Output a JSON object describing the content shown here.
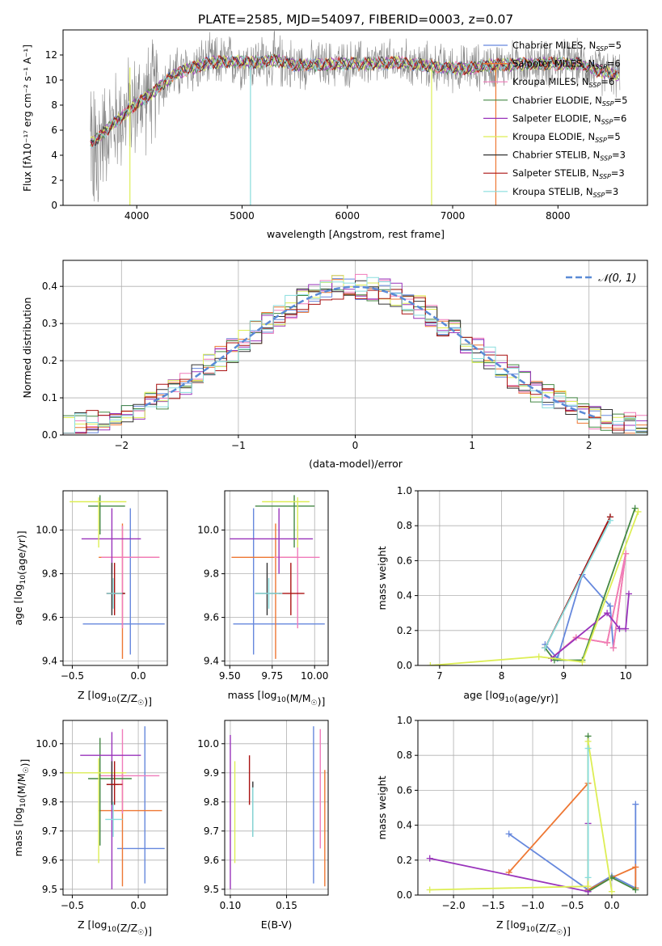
{
  "title": "PLATE=2585, MJD=54097, FIBERID=0003, z=0.07",
  "colors": [
    "#6688dd",
    "#ee7733",
    "#f07bbb",
    "#448844",
    "#9933bb",
    "#ddee55",
    "#333333",
    "#aa1111",
    "#88dddd",
    "#888888"
  ],
  "chart_data": [
    {
      "id": "spectrum",
      "type": "line",
      "xlabel": "wavelength [Angstrom, rest frame]",
      "ylabel": "Flux [fλ10⁻¹⁷ erg cm⁻² s⁻¹ A⁻¹]",
      "xlim": [
        3300,
        8850
      ],
      "ylim": [
        0,
        14
      ],
      "xticks": [
        "4000",
        "5000",
        "6000",
        "7000",
        "8000"
      ],
      "yticks": [
        "0",
        "2",
        "4",
        "6",
        "8",
        "10",
        "12"
      ],
      "legend_position": "right",
      "legend": [
        {
          "name": "Chabrier MILES, N",
          "sub": "SSP",
          "n": "=5",
          "color": "#6688dd"
        },
        {
          "name": "Salpeter MILES, N",
          "sub": "SSP",
          "n": "=6",
          "color": "#ee7733"
        },
        {
          "name": "Kroupa MILES, N",
          "sub": "SSP",
          "n": "=6",
          "color": "#f07bbb"
        },
        {
          "name": "Chabrier ELODIE, N",
          "sub": "SSP",
          "n": "=5",
          "color": "#448844"
        },
        {
          "name": "Salpeter ELODIE, N",
          "sub": "SSP",
          "n": "=6",
          "color": "#9933bb"
        },
        {
          "name": "Kroupa ELODIE, N",
          "sub": "SSP",
          "n": "=5",
          "color": "#ddee55"
        },
        {
          "name": "Chabrier STELIB, N",
          "sub": "SSP",
          "n": "=3",
          "color": "#333333"
        },
        {
          "name": "Salpeter STELIB, N",
          "sub": "SSP",
          "n": "=3",
          "color": "#aa1111"
        },
        {
          "name": "Kroupa STELIB, N",
          "sub": "SSP",
          "n": "=3",
          "color": "#88dddd"
        }
      ],
      "model_continuum": [
        [
          3560,
          5.0
        ],
        [
          3650,
          5.5
        ],
        [
          3750,
          6.3
        ],
        [
          3850,
          7.0
        ],
        [
          3950,
          7.8
        ],
        [
          4050,
          8.4
        ],
        [
          4150,
          9.0
        ],
        [
          4250,
          9.7
        ],
        [
          4350,
          10.4
        ],
        [
          4500,
          10.9
        ],
        [
          4700,
          11.4
        ],
        [
          4900,
          11.5
        ],
        [
          5100,
          11.4
        ],
        [
          5300,
          11.6
        ],
        [
          5500,
          11.2
        ],
        [
          5700,
          11.2
        ],
        [
          5900,
          11.3
        ],
        [
          6100,
          11.3
        ],
        [
          6300,
          11.3
        ],
        [
          6500,
          11.4
        ],
        [
          6700,
          11.2
        ],
        [
          6900,
          11.0
        ],
        [
          7100,
          10.9
        ],
        [
          7300,
          11.1
        ],
        [
          7450,
          11.2
        ],
        [
          7700,
          11.3
        ],
        [
          8000,
          11.3
        ],
        [
          8200,
          11.3
        ],
        [
          8400,
          10.7
        ],
        [
          8580,
          10.4
        ]
      ]
    },
    {
      "id": "residuals",
      "type": "histogram",
      "xlabel": "(data-model)/error",
      "ylabel": "Normed distribution",
      "xlim": [
        -2.5,
        2.5
      ],
      "ylim": [
        0,
        0.47
      ],
      "xticks": [
        "−2",
        "−1",
        "0",
        "1",
        "2"
      ],
      "yticks": [
        "0.0",
        "0.1",
        "0.2",
        "0.3",
        "0.4"
      ],
      "grid": true,
      "legend_label": "𝒩(0, 1)",
      "legend_position": "top-right",
      "bin_width": 0.1,
      "bins_start": -2.5,
      "gaussian": {
        "mean": 0,
        "sigma": 1,
        "range": [
          -1.8,
          2.1
        ]
      }
    },
    {
      "id": "age-vs-Z",
      "type": "errorbar",
      "xlabel": "Z [log10(Z/Z☉)]",
      "ylabel": "age  [log10(age/yr)]",
      "xlim": [
        -0.57,
        0.22
      ],
      "ylim": [
        9.38,
        10.18
      ],
      "xticks": [
        "−0.5",
        "0.0"
      ],
      "xtick_values": [
        -0.5,
        0.0
      ],
      "yticks": [
        "9.4",
        "9.6",
        "9.8",
        "10.0"
      ],
      "ytick_values": [
        9.4,
        9.6,
        9.8,
        10.0
      ],
      "grid": true,
      "points": [
        {
          "x": -0.06,
          "xlo": -0.42,
          "xhi": 0.2,
          "y": 9.57,
          "ylo": 9.43,
          "yhi": 10.1,
          "color": "#6688dd"
        },
        {
          "x": -0.12,
          "xlo": -0.3,
          "xhi": 0.16,
          "y": 9.875,
          "ylo": 9.41,
          "yhi": 10.03,
          "color": "#ee7733"
        },
        {
          "x": -0.12,
          "xlo": -0.28,
          "xhi": 0.16,
          "y": 9.875,
          "ylo": 9.55,
          "yhi": 10.02,
          "color": "#f07bbb"
        },
        {
          "x": -0.29,
          "xlo": -0.38,
          "xhi": -0.1,
          "y": 10.11,
          "ylo": 9.98,
          "yhi": 10.16,
          "color": "#448844"
        },
        {
          "x": -0.2,
          "xlo": -0.43,
          "xhi": 0.02,
          "y": 9.96,
          "ylo": 9.8,
          "yhi": 10.1,
          "color": "#9933bb"
        },
        {
          "x": -0.3,
          "xlo": -0.52,
          "xhi": -0.09,
          "y": 10.13,
          "ylo": 9.92,
          "yhi": 10.15,
          "color": "#ddee55"
        },
        {
          "x": -0.2,
          "xlo": -0.24,
          "xhi": -0.1,
          "y": 9.71,
          "ylo": 9.61,
          "yhi": 9.85,
          "color": "#333333"
        },
        {
          "x": -0.18,
          "xlo": -0.24,
          "xhi": -0.1,
          "y": 9.71,
          "ylo": 9.61,
          "yhi": 9.85,
          "color": "#aa1111"
        },
        {
          "x": -0.19,
          "xlo": -0.24,
          "xhi": -0.12,
          "y": 9.71,
          "ylo": 9.64,
          "yhi": 9.78,
          "color": "#88dddd"
        }
      ]
    },
    {
      "id": "age-vs-mass",
      "type": "errorbar",
      "xlabel": "mass [log10(M/M☉)]",
      "ylabel": "",
      "xlim": [
        9.47,
        10.08
      ],
      "ylim": [
        9.38,
        10.18
      ],
      "xticks": [
        "9.50",
        "9.75",
        "10.00"
      ],
      "xtick_values": [
        9.5,
        9.75,
        10.0
      ],
      "yticks": [
        "9.4",
        "9.6",
        "9.8",
        "10.0"
      ],
      "ytick_values": [
        9.4,
        9.6,
        9.8,
        10.0
      ],
      "grid": true,
      "points": [
        {
          "x": 9.64,
          "xlo": 9.52,
          "xhi": 10.06,
          "y": 9.57,
          "ylo": 9.43,
          "yhi": 10.1,
          "color": "#6688dd"
        },
        {
          "x": 9.77,
          "xlo": 9.51,
          "xhi": 9.9,
          "y": 9.875,
          "ylo": 9.41,
          "yhi": 10.03,
          "color": "#ee7733"
        },
        {
          "x": 9.9,
          "xlo": 9.76,
          "xhi": 10.03,
          "y": 9.875,
          "ylo": 9.55,
          "yhi": 10.02,
          "color": "#f07bbb"
        },
        {
          "x": 9.88,
          "xlo": 9.65,
          "xhi": 10.0,
          "y": 10.11,
          "ylo": 9.92,
          "yhi": 10.16,
          "color": "#448844"
        },
        {
          "x": 9.79,
          "xlo": 9.5,
          "xhi": 9.99,
          "y": 9.96,
          "ylo": 9.8,
          "yhi": 10.1,
          "color": "#9933bb"
        },
        {
          "x": 9.9,
          "xlo": 9.69,
          "xhi": 9.97,
          "y": 10.13,
          "ylo": 9.92,
          "yhi": 10.15,
          "color": "#ddee55"
        },
        {
          "x": 9.72,
          "xlo": 9.65,
          "xhi": 9.8,
          "y": 9.71,
          "ylo": 9.61,
          "yhi": 9.85,
          "color": "#333333"
        },
        {
          "x": 9.86,
          "xlo": 9.79,
          "xhi": 9.94,
          "y": 9.71,
          "ylo": 9.61,
          "yhi": 9.85,
          "color": "#aa1111"
        },
        {
          "x": 9.73,
          "xlo": 9.65,
          "xhi": 9.81,
          "y": 9.71,
          "ylo": 9.64,
          "yhi": 9.78,
          "color": "#88dddd"
        }
      ]
    },
    {
      "id": "weight-vs-age",
      "type": "line",
      "xlabel": "age  [log10(age/yr)]",
      "ylabel": "mass weight",
      "xlim": [
        6.65,
        10.35
      ],
      "ylim": [
        0,
        1
      ],
      "xticks": [
        "7",
        "8",
        "9",
        "10"
      ],
      "xtick_values": [
        7,
        8,
        9,
        10
      ],
      "yticks": [
        "0.0",
        "0.2",
        "0.4",
        "0.6",
        "0.8",
        "1.0"
      ],
      "ytick_values": [
        0,
        0.2,
        0.4,
        0.6,
        0.8,
        1.0
      ],
      "grid": true,
      "series": [
        {
          "color": "#6688dd",
          "x": [
            8.7,
            8.9,
            9.3,
            9.75,
            9.8
          ],
          "y": [
            0.12,
            0.04,
            0.52,
            0.34,
            0.1
          ]
        },
        {
          "color": "#ee7733",
          "x": [
            8.8,
            9.2,
            9.7,
            10.0,
            9.8
          ],
          "y": [
            0.04,
            0.16,
            0.13,
            0.64,
            0.1
          ]
        },
        {
          "color": "#f07bbb",
          "x": [
            8.8,
            9.2,
            9.7,
            10.0,
            9.8
          ],
          "y": [
            0.04,
            0.16,
            0.13,
            0.64,
            0.1
          ]
        },
        {
          "color": "#448844",
          "x": [
            8.7,
            8.85,
            9.3,
            10.15
          ],
          "y": [
            0.1,
            0.03,
            0.03,
            0.9
          ]
        },
        {
          "color": "#9933bb",
          "x": [
            8.8,
            9.7,
            9.9,
            10.0,
            10.05
          ],
          "y": [
            0.04,
            0.3,
            0.21,
            0.21,
            0.41
          ]
        },
        {
          "color": "#ddee55",
          "x": [
            6.85,
            8.6,
            9.3,
            10.2
          ],
          "y": [
            0.0,
            0.05,
            0.02,
            0.88
          ]
        },
        {
          "color": "#333333",
          "x": [
            8.7,
            9.75
          ],
          "y": [
            0.1,
            0.85
          ]
        },
        {
          "color": "#aa1111",
          "x": [
            8.7,
            9.75
          ],
          "y": [
            0.1,
            0.85
          ]
        },
        {
          "color": "#88dddd",
          "x": [
            8.7,
            9.75
          ],
          "y": [
            0.1,
            0.83
          ]
        }
      ]
    },
    {
      "id": "mass-vs-Z",
      "type": "errorbar",
      "xlabel": "Z [log10(Z/Z☉)]",
      "ylabel": "mass [log10(M/M☉)]",
      "xlim": [
        -0.57,
        0.22
      ],
      "ylim": [
        9.48,
        10.08
      ],
      "xticks": [
        "−0.5",
        "0.0"
      ],
      "xtick_values": [
        -0.5,
        0.0
      ],
      "yticks": [
        "9.5",
        "9.6",
        "9.7",
        "9.8",
        "9.9",
        "10.0"
      ],
      "ytick_values": [
        9.5,
        9.6,
        9.7,
        9.8,
        9.9,
        10.0
      ],
      "grid": true,
      "points": [
        {
          "x": 0.05,
          "xlo": -0.16,
          "xhi": 0.2,
          "y": 9.64,
          "ylo": 9.52,
          "yhi": 10.06,
          "color": "#6688dd"
        },
        {
          "x": -0.12,
          "xlo": -0.3,
          "xhi": 0.18,
          "y": 9.77,
          "ylo": 9.51,
          "yhi": 9.9,
          "color": "#ee7733"
        },
        {
          "x": -0.12,
          "xlo": -0.3,
          "xhi": 0.16,
          "y": 9.89,
          "ylo": 9.76,
          "yhi": 10.05,
          "color": "#f07bbb"
        },
        {
          "x": -0.29,
          "xlo": -0.38,
          "xhi": -0.05,
          "y": 9.88,
          "ylo": 9.65,
          "yhi": 10.02,
          "color": "#448844"
        },
        {
          "x": -0.2,
          "xlo": -0.44,
          "xhi": 0.02,
          "y": 9.96,
          "ylo": 9.5,
          "yhi": 10.04,
          "color": "#9933bb"
        },
        {
          "x": -0.3,
          "xlo": -0.56,
          "xhi": -0.09,
          "y": 9.9,
          "ylo": 9.59,
          "yhi": 9.95,
          "color": "#ddee55"
        },
        {
          "x": -0.2,
          "xlo": -0.24,
          "xhi": -0.15,
          "y": 9.86,
          "ylo": 9.79,
          "yhi": 9.94,
          "color": "#333333"
        },
        {
          "x": -0.18,
          "xlo": -0.24,
          "xhi": -0.12,
          "y": 9.86,
          "ylo": 9.79,
          "yhi": 9.94,
          "color": "#aa1111"
        },
        {
          "x": -0.19,
          "xlo": -0.25,
          "xhi": -0.12,
          "y": 9.74,
          "ylo": 9.68,
          "yhi": 9.8,
          "color": "#88dddd"
        }
      ]
    },
    {
      "id": "mass-vs-EBV",
      "type": "errorbar",
      "xlabel": "E(B-V)",
      "ylabel": "",
      "xlim": [
        0.095,
        0.187
      ],
      "ylim": [
        9.48,
        10.08
      ],
      "xticks": [
        "0.10",
        "0.15"
      ],
      "xtick_values": [
        0.1,
        0.15
      ],
      "yticks": [
        "9.5",
        "9.6",
        "9.7",
        "9.8",
        "9.9",
        "10.0"
      ],
      "ytick_values": [
        9.5,
        9.6,
        9.7,
        9.8,
        9.9,
        10.0
      ],
      "grid": true,
      "points": [
        {
          "x": 0.174,
          "y": 9.64,
          "ylo": 9.52,
          "yhi": 10.06,
          "color": "#6688dd"
        },
        {
          "x": 0.184,
          "y": 9.77,
          "ylo": 9.51,
          "yhi": 9.91,
          "color": "#ee7733"
        },
        {
          "x": 0.18,
          "y": 9.89,
          "ylo": 9.64,
          "yhi": 10.05,
          "color": "#f07bbb"
        },
        {
          "x": 0.1,
          "y": 9.88,
          "ylo": 9.5,
          "yhi": 10.03,
          "color": "#9933bb"
        },
        {
          "x": 0.104,
          "y": 9.9,
          "ylo": 9.59,
          "yhi": 9.94,
          "color": "#ddee55"
        },
        {
          "x": 0.12,
          "y": 9.86,
          "ylo": 9.68,
          "yhi": 9.87,
          "color": "#333333"
        },
        {
          "x": 0.117,
          "y": 9.86,
          "ylo": 9.79,
          "yhi": 9.96,
          "color": "#aa1111"
        },
        {
          "x": 0.12,
          "y": 9.74,
          "ylo": 9.68,
          "yhi": 9.85,
          "color": "#88dddd"
        }
      ]
    },
    {
      "id": "weight-vs-Z",
      "type": "line",
      "xlabel": "Z [log10(Z/Z☉)]",
      "ylabel": "mass weight",
      "xlim": [
        -2.45,
        0.45
      ],
      "ylim": [
        0,
        1
      ],
      "xticks": [
        "−2.0",
        "−1.5",
        "−1.0",
        "−0.5",
        "0.0"
      ],
      "xtick_values": [
        -2.0,
        -1.5,
        -1.0,
        -0.5,
        0.0
      ],
      "yticks": [
        "0.0",
        "0.2",
        "0.4",
        "0.6",
        "0.8",
        "1.0"
      ],
      "ytick_values": [
        0,
        0.2,
        0.4,
        0.6,
        0.8,
        1.0
      ],
      "grid": true,
      "series": [
        {
          "color": "#6688dd",
          "x": [
            -1.3,
            -0.3,
            0.0,
            0.3,
            0.3
          ],
          "y": [
            0.35,
            0.03,
            0.11,
            0.04,
            0.52
          ]
        },
        {
          "color": "#ee7733",
          "x": [
            -1.3,
            -0.3,
            -0.3,
            0.0,
            0.3,
            0.3
          ],
          "y": [
            0.13,
            0.64,
            0.03,
            0.1,
            0.16,
            0.04
          ]
        },
        {
          "color": "#448844",
          "x": [
            -0.3,
            -0.3,
            0.0,
            0.3
          ],
          "y": [
            0.91,
            0.02,
            0.1,
            0.03
          ]
        },
        {
          "color": "#9933bb",
          "x": [
            -2.3,
            -0.3,
            -0.3
          ],
          "y": [
            0.21,
            0.02,
            0.41
          ]
        },
        {
          "color": "#ddee55",
          "x": [
            -2.3,
            -0.3,
            -0.3,
            0.0
          ],
          "y": [
            0.03,
            0.05,
            0.88,
            0.02
          ]
        },
        {
          "color": "#88dddd",
          "x": [
            -0.3,
            -0.3
          ],
          "y": [
            0.84,
            0.1
          ]
        }
      ]
    }
  ]
}
